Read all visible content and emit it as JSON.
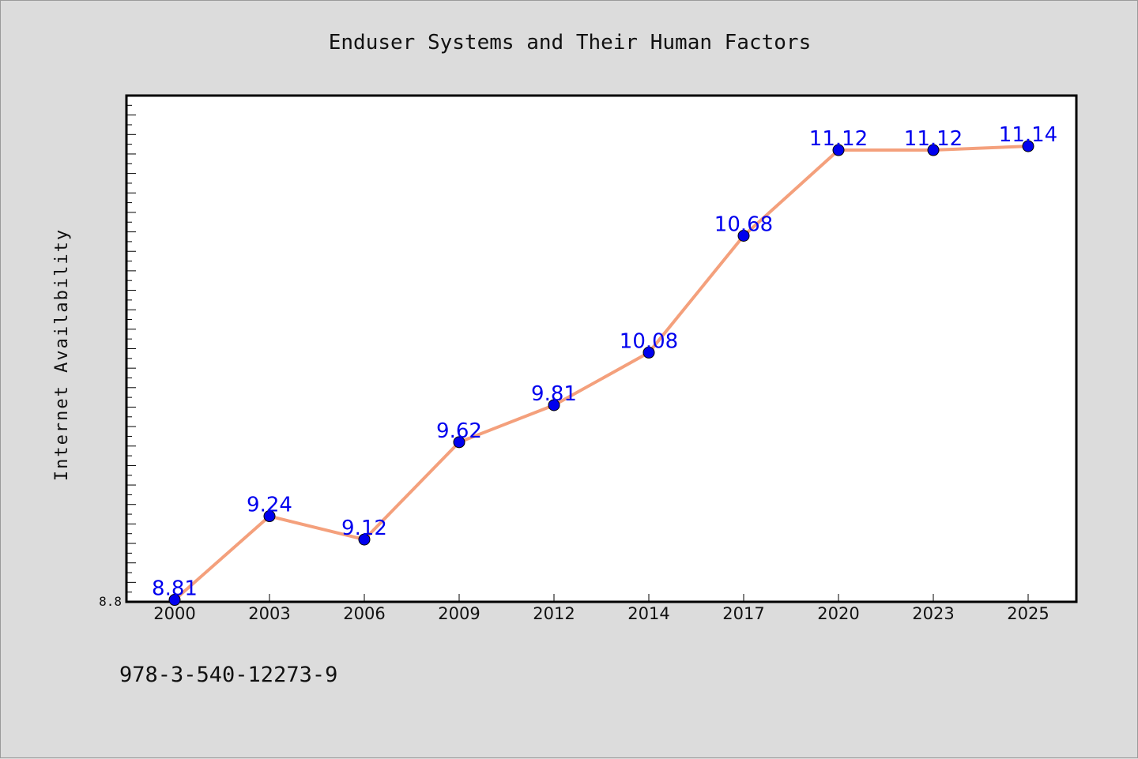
{
  "footer_text": "978-3-540-12273-9",
  "colors": {
    "line": "#f4a07c",
    "marker": "#0000ee",
    "label": "#0000ee",
    "plot_bg": "#ffffff",
    "page_bg": "#dcdcdc"
  },
  "chart_data": {
    "type": "line",
    "title": "Enduser Systems and Their Human Factors",
    "xlabel": "",
    "ylabel": "Internet Availability",
    "categories": [
      "2000",
      "2003",
      "2006",
      "2009",
      "2012",
      "2014",
      "2017",
      "2020",
      "2023",
      "2025"
    ],
    "series": [
      {
        "values": [
          8.81,
          9.24,
          9.12,
          9.62,
          9.81,
          10.08,
          10.68,
          11.12,
          11.12,
          11.14
        ]
      }
    ],
    "data_labels": [
      "8.81",
      "9.24",
      "9.12",
      "9.62",
      "9.81",
      "10.08",
      "10.68",
      "11.12",
      "11.12",
      "11.14"
    ],
    "ylim": [
      8.8,
      11.4
    ],
    "y_tick_labels": [
      "8.8"
    ],
    "grid": false,
    "legend": "none"
  }
}
